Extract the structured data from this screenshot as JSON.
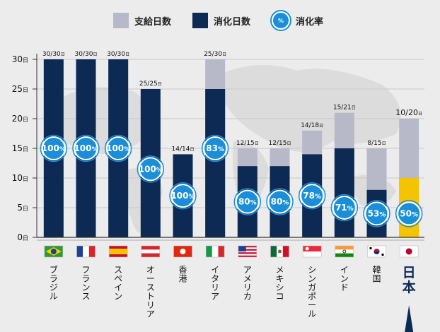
{
  "legend": {
    "supplied_label": "支給日数",
    "used_label": "消化日数",
    "rate_label": "消化率",
    "rate_icon_text": "%"
  },
  "y_axis_unit": "日",
  "colors": {
    "supplied": "#b7b9c9",
    "used": "#0d2a55",
    "used_japan": "#f5c400",
    "rate_circle": "#1a8fd8",
    "background": "#ececec"
  },
  "chart_data": {
    "type": "bar",
    "categories": [
      "ブラジル",
      "フランス",
      "スペイン",
      "オーストリア",
      "香港",
      "イタリア",
      "アメリカ",
      "メキシコ",
      "シンガポール",
      "インド",
      "韓国",
      "日本"
    ],
    "series": [
      {
        "name": "支給日数",
        "values": [
          30,
          30,
          30,
          25,
          14,
          30,
          15,
          15,
          18,
          21,
          15,
          20
        ]
      },
      {
        "name": "消化日数",
        "values": [
          30,
          30,
          30,
          25,
          14,
          25,
          12,
          12,
          14,
          15,
          8,
          10
        ]
      },
      {
        "name": "消化率",
        "values": [
          100,
          100,
          100,
          100,
          100,
          83,
          80,
          80,
          78,
          71,
          53,
          50
        ]
      }
    ],
    "bar_labels": [
      "30/30日",
      "30/30日",
      "30/30日",
      "25/25日",
      "14/14日",
      "25/30日",
      "12/15日",
      "12/15日",
      "14/18日",
      "15/21日",
      "8/15日",
      "10/20日"
    ],
    "rate_labels": [
      "100%",
      "100%",
      "100%",
      "100%",
      "100%",
      "83%",
      "80%",
      "80%",
      "78%",
      "71%",
      "53%",
      "50%"
    ],
    "y_ticks": [
      0,
      5,
      10,
      15,
      20,
      25,
      30
    ],
    "ylim": [
      0,
      30
    ],
    "flags": [
      "brazil-flag",
      "france-flag",
      "spain-flag",
      "austria-flag",
      "hongkong-flag",
      "italy-flag",
      "usa-flag",
      "mexico-flag",
      "singapore-flag",
      "india-flag",
      "korea-flag",
      "japan-flag"
    ],
    "highlight": "日本",
    "grid": true,
    "legend_position": "top-center"
  }
}
